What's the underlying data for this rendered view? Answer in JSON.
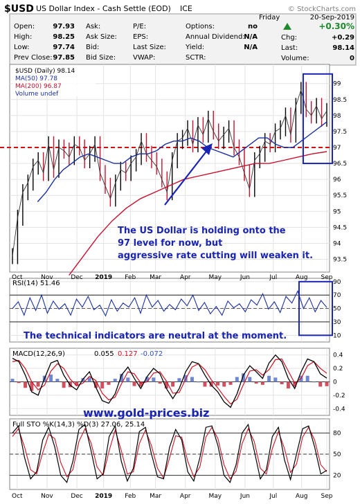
{
  "header": {
    "symbol": "$USD",
    "name": "US Dollar Index - Cash Settle (EOD)",
    "exchange": "ICE",
    "watermark": "© StockCharts.com",
    "day": "Friday",
    "date": "20-Sep-2019",
    "change_pct": "+0.30%",
    "quote": [
      {
        "label": "Open:",
        "value": "97.93"
      },
      {
        "label": "High:",
        "value": "98.25"
      },
      {
        "label": "Low:",
        "value": "97.74"
      },
      {
        "label": "Prev Close:",
        "value": "97.85"
      }
    ],
    "book": [
      "Ask:",
      "Ask Size:",
      "Bid:",
      "Bid Size:"
    ],
    "fundamentals": [
      {
        "label": "P/E:",
        "value": ""
      },
      {
        "label": "EPS:",
        "value": ""
      },
      {
        "label": "Last Size:",
        "value": ""
      },
      {
        "label": "VWAP:",
        "value": ""
      }
    ],
    "stats": [
      {
        "label": "Options:",
        "value": "no"
      },
      {
        "label": "Annual Dividend:",
        "value": "N/A"
      },
      {
        "label": "Yield:",
        "value": "N/A"
      },
      {
        "label": "SCTR:",
        "value": ""
      }
    ],
    "right": [
      {
        "label": "Chg:",
        "value": "+0.29"
      },
      {
        "label": "Last:",
        "value": "98.14"
      },
      {
        "label": "Volume:",
        "value": "0"
      }
    ]
  },
  "chart_data": [
    {
      "type": "ohlc",
      "legend": [
        "$USD (Daily) 98.14",
        "MA(50) 97.78",
        "MA(200) 96.87",
        "Volume undef"
      ],
      "legend_colors": [
        "#000000",
        "#1a2fa0",
        "#c8102e",
        "#1a2fa0"
      ],
      "y_ticks": [
        93.5,
        94.0,
        94.5,
        95.0,
        95.5,
        96.0,
        96.5,
        97.0,
        97.5,
        98.0,
        98.5,
        99.0
      ],
      "ylim": [
        93.1,
        99.6
      ],
      "x_ticks": [
        "Oct",
        "Nov",
        "Dec",
        "2019",
        "Feb",
        "Mar",
        "Apr",
        "May",
        "Jun",
        "Jul",
        "Aug",
        "Sep"
      ],
      "x_tick_fraction": [
        0.015,
        0.11,
        0.205,
        0.29,
        0.375,
        0.455,
        0.55,
        0.645,
        0.74,
        0.83,
        0.92,
        1.0
      ],
      "price_series": [
        93.6,
        94.8,
        95.6,
        95.9,
        96.4,
        96.6,
        96.2,
        97.1,
        96.3,
        97.0,
        96.9,
        96.7,
        97.1,
        97.0,
        96.6,
        96.8,
        97.1,
        96.2,
        95.8,
        95.4,
        95.9,
        96.3,
        96.2,
        96.5,
        96.7,
        97.2,
        96.8,
        96.6,
        96.4,
        96.0,
        95.6,
        96.6,
        97.2,
        97.3,
        97.6,
        97.1,
        97.7,
        97.4,
        97.9,
        97.5,
        97.2,
        97.4,
        97.6,
        97.0,
        96.7,
        96.2,
        95.7,
        96.6,
        96.8,
        97.2,
        97.1,
        97.5,
        97.6,
        98.0,
        97.4,
        98.3,
        98.8,
        98.2,
        98.0,
        98.3,
        97.9,
        98.14
      ],
      "ma50_series": [
        95.3,
        95.6,
        96.0,
        96.3,
        96.5,
        96.7,
        96.8,
        96.7,
        96.6,
        96.5,
        96.5,
        96.7,
        96.8,
        96.8,
        96.9,
        97.1,
        97.2,
        97.2,
        97.3,
        97.2,
        97.0,
        96.9,
        96.8,
        96.7,
        96.9,
        97.1,
        97.3,
        97.3,
        97.1,
        97.0,
        97.0,
        97.2,
        97.4,
        97.6,
        97.8
      ],
      "ma200_series": [
        93.0,
        93.6,
        94.2,
        94.7,
        95.1,
        95.4,
        95.6,
        95.8,
        96.0,
        96.1,
        96.2,
        96.3,
        96.4,
        96.5,
        96.5,
        96.6,
        96.7,
        96.8,
        96.87
      ],
      "reference_line": 97.0,
      "highlight_box": {
        "from": 0.925,
        "to": 1.0,
        "ymin": 96.5,
        "ymax": 99.3
      },
      "annotation": "The US Dollar is holding onto the 97 level for now, but aggressive rate cutting will weaken it."
    },
    {
      "type": "line",
      "legend": [
        "RSI(14) 51.46"
      ],
      "y_ticks": [
        10,
        30,
        50,
        70,
        90
      ],
      "ylim": [
        0,
        95
      ],
      "bands": [
        30,
        70
      ],
      "series": [
        50,
        60,
        40,
        66,
        47,
        70,
        43,
        61,
        49,
        57,
        40,
        64,
        52,
        68,
        48,
        55,
        39,
        63,
        46,
        58,
        52,
        66,
        43,
        70,
        52,
        62,
        46,
        56,
        48,
        64,
        54,
        70,
        47,
        59,
        42,
        53,
        40,
        61,
        51,
        57,
        45,
        63,
        55,
        72,
        49,
        60,
        44,
        68,
        58,
        76,
        50,
        66,
        45,
        62,
        51.46
      ],
      "highlight_box": {
        "from": 0.925,
        "to": 1.0,
        "ymin": 10,
        "ymax": 90
      },
      "annotation": "The technical indicators are neutral at the moment."
    },
    {
      "type": "line",
      "legend": [
        "MACD(12,26,9)",
        "0.055",
        "0.127",
        "-0.072"
      ],
      "legend_colors": [
        "#000000",
        "#000000",
        "#d01020",
        "#3050c8"
      ],
      "y_ticks": [
        -0.4,
        -0.2,
        0.0,
        0.2,
        0.4
      ],
      "ylim": [
        -0.5,
        0.5
      ],
      "macd_series": [
        0.35,
        0.3,
        0.1,
        -0.15,
        -0.2,
        0.05,
        0.28,
        0.32,
        0.1,
        -0.05,
        -0.12,
        0.04,
        0.15,
        -0.08,
        -0.28,
        -0.32,
        -0.18,
        0.1,
        0.22,
        0.05,
        -0.1,
        0.08,
        0.2,
        0.12,
        -0.1,
        -0.25,
        -0.1,
        0.15,
        0.3,
        0.27,
        0.1,
        -0.05,
        -0.15,
        -0.3,
        -0.38,
        -0.18,
        0.1,
        0.24,
        0.15,
        0.05,
        0.28,
        0.4,
        0.3,
        0.05,
        -0.1,
        0.15,
        0.34,
        0.3,
        0.12,
        0.055
      ],
      "signal_series": [
        0.3,
        0.32,
        0.2,
        0.0,
        -0.12,
        -0.05,
        0.16,
        0.27,
        0.2,
        0.04,
        -0.06,
        -0.02,
        0.08,
        0.02,
        -0.17,
        -0.27,
        -0.23,
        -0.03,
        0.15,
        0.12,
        -0.02,
        0.0,
        0.13,
        0.15,
        0.01,
        -0.17,
        -0.16,
        0.04,
        0.22,
        0.27,
        0.18,
        0.03,
        -0.09,
        -0.22,
        -0.33,
        -0.26,
        -0.04,
        0.16,
        0.18,
        0.1,
        0.18,
        0.33,
        0.34,
        0.16,
        -0.02,
        0.05,
        0.24,
        0.3,
        0.2,
        0.127
      ]
    },
    {
      "type": "line",
      "legend": [
        "Full STO %K(14,3) %D(3) 27.06, 25.14"
      ],
      "y_ticks": [
        20,
        50,
        80
      ],
      "ylim": [
        0,
        100
      ],
      "bands": [
        20,
        80
      ],
      "k_series": [
        80,
        90,
        45,
        15,
        25,
        70,
        88,
        60,
        20,
        10,
        40,
        85,
        92,
        55,
        15,
        22,
        75,
        90,
        40,
        12,
        30,
        82,
        88,
        50,
        18,
        15,
        60,
        85,
        70,
        25,
        12,
        45,
        88,
        90,
        62,
        20,
        10,
        35,
        80,
        92,
        55,
        15,
        28,
        75,
        88,
        42,
        14,
        50,
        86,
        90,
        60,
        22,
        27.06
      ],
      "d_series": [
        75,
        86,
        60,
        28,
        22,
        52,
        78,
        72,
        38,
        18,
        28,
        68,
        86,
        66,
        32,
        20,
        55,
        84,
        55,
        22,
        25,
        65,
        84,
        62,
        30,
        16,
        45,
        76,
        74,
        40,
        18,
        32,
        74,
        88,
        72,
        35,
        15,
        26,
        65,
        86,
        68,
        30,
        22,
        58,
        82,
        58,
        24,
        36,
        74,
        88,
        70,
        35,
        25.14
      ]
    }
  ],
  "footer_url": "www.gold-prices.biz"
}
